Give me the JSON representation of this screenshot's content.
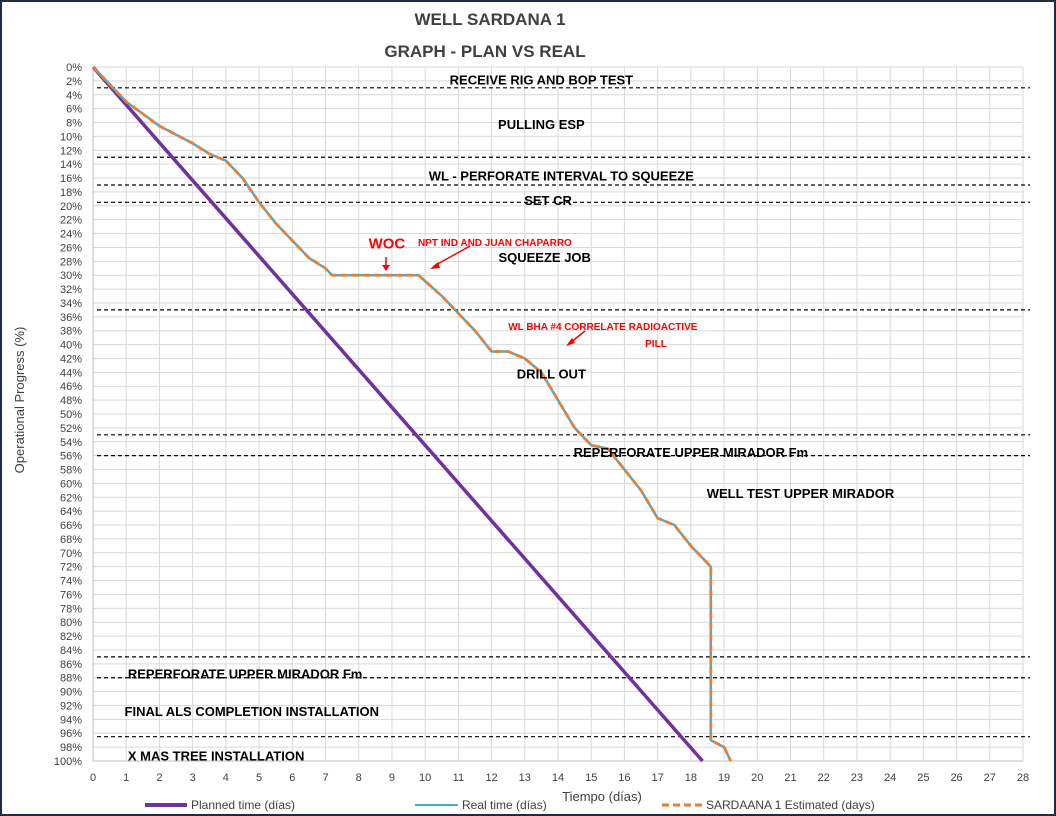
{
  "chart_data": {
    "type": "line",
    "title": "WELL SARDANA 1",
    "subtitle": "GRAPH  - PLAN VS REAL",
    "xlabel": "Tiempo (días)",
    "ylabel": "Operational Progress (%)",
    "xlim": [
      0,
      28
    ],
    "ylim": [
      0,
      100
    ],
    "y_inverted": true,
    "x_ticks": [
      "0",
      "1",
      "2",
      "3",
      "4",
      "5",
      "6",
      "7",
      "8",
      "9",
      "10",
      "11",
      "12",
      "13",
      "14",
      "15",
      "16",
      "17",
      "18",
      "19",
      "20",
      "21",
      "22",
      "23",
      "24",
      "25",
      "26",
      "27",
      "28"
    ],
    "y_ticks": [
      "0%",
      "2%",
      "4%",
      "6%",
      "8%",
      "10%",
      "12%",
      "14%",
      "16%",
      "18%",
      "20%",
      "22%",
      "24%",
      "26%",
      "28%",
      "30%",
      "32%",
      "34%",
      "36%",
      "38%",
      "40%",
      "42%",
      "44%",
      "46%",
      "48%",
      "50%",
      "52%",
      "54%",
      "56%",
      "58%",
      "60%",
      "62%",
      "64%",
      "66%",
      "68%",
      "70%",
      "72%",
      "74%",
      "76%",
      "78%",
      "80%",
      "82%",
      "84%",
      "86%",
      "88%",
      "90%",
      "92%",
      "94%",
      "96%",
      "98%",
      "100%"
    ],
    "grid": true,
    "legend_position": "bottom",
    "series": [
      {
        "name": "Planned time (días)",
        "color": "#7030a0",
        "style": "solid",
        "x": [
          0,
          18.35
        ],
        "y": [
          0,
          100
        ]
      },
      {
        "name": "Real time (días)",
        "color": "#4bacc6",
        "style": "solid",
        "x": [
          0,
          1,
          2,
          3,
          3.5,
          4,
          4.5,
          5,
          5.5,
          6,
          6.5,
          7,
          7.2,
          8,
          9,
          9.8,
          10.5,
          11,
          11.5,
          12,
          12.5,
          13,
          13.5,
          14,
          14.5,
          15,
          15.5,
          16,
          16.5,
          17,
          17.5,
          18,
          18.5,
          18.6,
          18.6,
          18.6,
          19,
          19.2
        ],
        "y": [
          0,
          5,
          8.5,
          11,
          12.5,
          13.5,
          16,
          19.5,
          22.5,
          25,
          27.5,
          29,
          30,
          30,
          30,
          30,
          33,
          35.5,
          38,
          41,
          41,
          42,
          44,
          48,
          52,
          54.5,
          55,
          58,
          61,
          65,
          66,
          69,
          71.5,
          72,
          88,
          97,
          98,
          100
        ]
      },
      {
        "name": "SARDAANA 1 Estimated (days)",
        "color": "#ed7d31",
        "style": "dashed",
        "x": [
          0,
          1,
          2,
          3,
          3.5,
          4,
          4.5,
          5,
          5.5,
          6,
          6.5,
          7,
          7.2,
          8,
          9,
          9.8,
          10.5,
          11,
          11.5,
          12,
          12.5,
          13,
          13.5,
          14,
          14.5,
          15,
          15.5,
          16,
          16.5,
          17,
          17.5,
          18,
          18.5,
          18.6,
          18.6,
          18.6,
          19,
          19.2
        ],
        "y": [
          0,
          5,
          8.5,
          11,
          12.5,
          13.5,
          16,
          19.5,
          22.5,
          25,
          27.5,
          29,
          30,
          30,
          30,
          30,
          33,
          35.5,
          38,
          41,
          41,
          42,
          44,
          48,
          52,
          54.5,
          55,
          58,
          61,
          65,
          66,
          69,
          71.5,
          72,
          88,
          97,
          98,
          100
        ]
      }
    ],
    "phase_boundaries": [
      3,
      13,
      17,
      19.5,
      35,
      53,
      56,
      85,
      88,
      96.5
    ],
    "phases": [
      {
        "label": "RECEIVE RIG AND BOP TEST",
        "x": 13.5,
        "y": 1.8
      },
      {
        "label": "PULLING ESP",
        "x": 13.5,
        "y": 8.2
      },
      {
        "label": "WL - PERFORATE INTERVAL TO SQUEEZE",
        "x": 14.1,
        "y": 15.6
      },
      {
        "label": "SET CR",
        "x": 13.7,
        "y": 19.2
      },
      {
        "label": "SQUEEZE JOB",
        "x": 13.6,
        "y": 27.4
      },
      {
        "label": "DRILL OUT",
        "x": 13.8,
        "y": 44.2
      },
      {
        "label": "REPERFORATE UPPER MIRADOR Fm",
        "x": 18.0,
        "y": 55.5
      },
      {
        "label": "WELL TEST UPPER MIRADOR",
        "x": 21.3,
        "y": 61.4
      },
      {
        "label": "REPERFORATE UPPER MIRADOR Fm",
        "x": 1.05,
        "y": 87.4
      },
      {
        "label": "FINAL ALS COMPLETION INSTALLATION",
        "x": 0.95,
        "y": 92.8
      },
      {
        "label": "X MAS TREE INSTALLATION",
        "x": 1.05,
        "y": 99.2
      }
    ],
    "annotations": [
      {
        "label": "WOC",
        "x": 8.85,
        "y": 25.6,
        "color": "#ff0000"
      },
      {
        "label": "NPT IND AND JUAN CHAPARRO",
        "x": 12.1,
        "y": 25.2,
        "color": "#ff0000"
      },
      {
        "label": "WL BHA #4 CORRELATE RADIOACTIVE",
        "x": 15.35,
        "y": 37.3,
        "color": "#ff0000"
      },
      {
        "label": "PILL",
        "x": 16.95,
        "y": 39.8,
        "color": "#ff0000"
      }
    ]
  }
}
